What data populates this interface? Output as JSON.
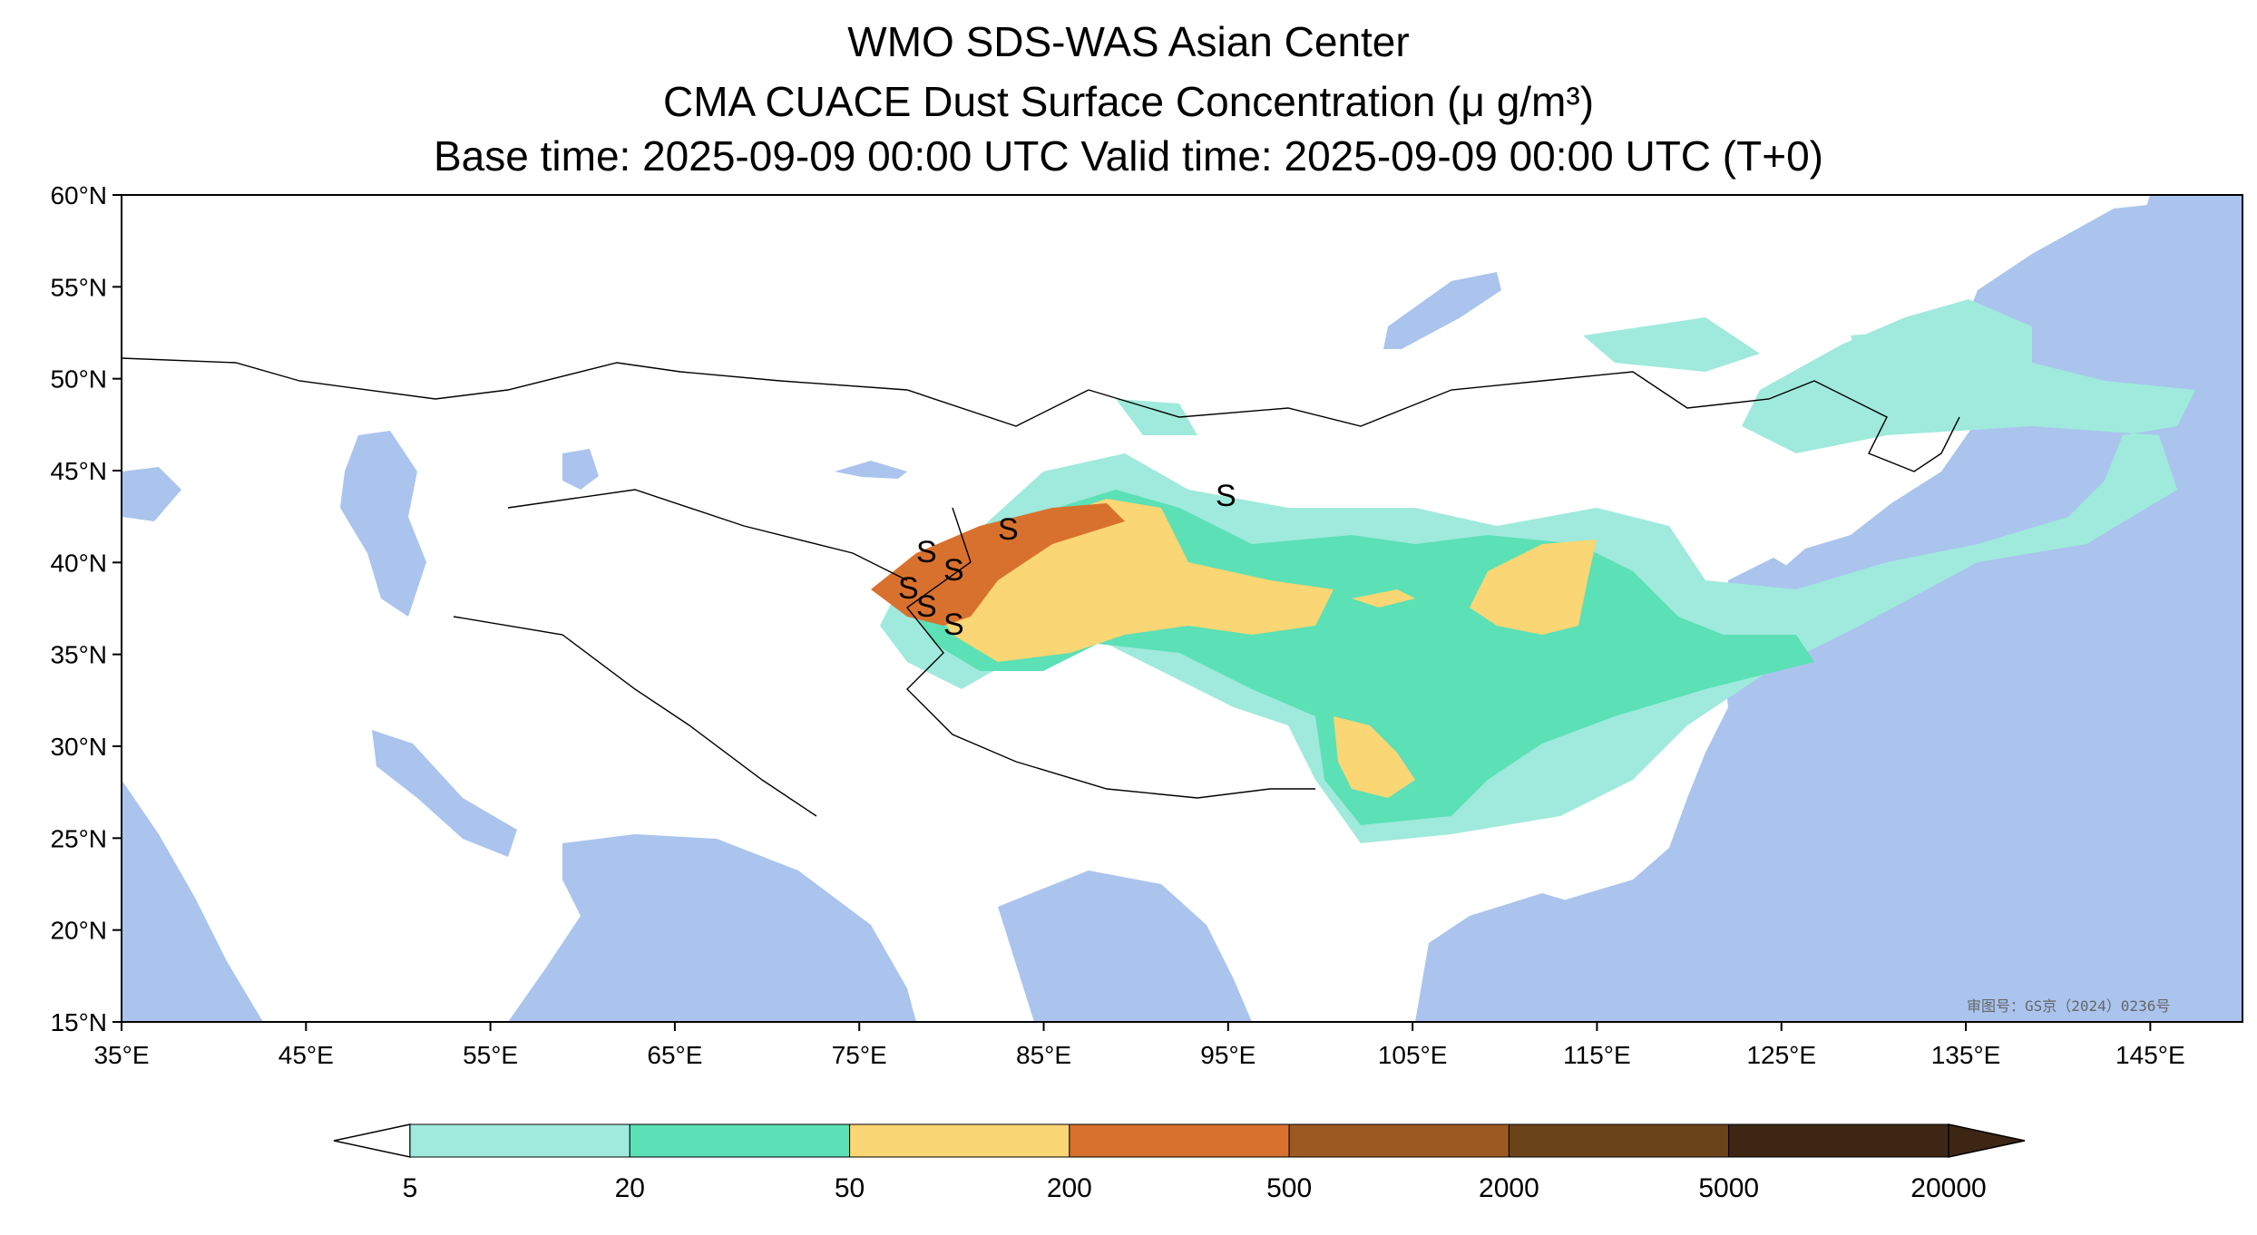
{
  "title": {
    "line1": "WMO SDS-WAS Asian Center",
    "line2": "CMA CUACE Dust Surface Concentration (μ g/m³)",
    "line3": "Base time: 2025-09-09 00:00 UTC Valid time: 2025-09-09 00:00 UTC (T+0)"
  },
  "map": {
    "lon_range": [
      35,
      150
    ],
    "lat_range": [
      15,
      60
    ],
    "lon_ticks": [
      "35°E",
      "45°E",
      "55°E",
      "65°E",
      "75°E",
      "85°E",
      "95°E",
      "105°E",
      "115°E",
      "125°E",
      "135°E",
      "145°E"
    ],
    "lat_ticks": [
      "60°N",
      "55°N",
      "50°N",
      "45°N",
      "40°N",
      "35°N",
      "30°N",
      "25°N",
      "20°N",
      "15°N"
    ],
    "approval_stamp": "审图号：GS京（2024）0236号",
    "ocean_color": "#aac4ee",
    "land_color": "#ffffff",
    "dust_marker": "S"
  },
  "colorbar": {
    "levels": [
      "5",
      "20",
      "50",
      "200",
      "500",
      "2000",
      "5000",
      "20000"
    ],
    "colors": [
      "#9feadc",
      "#5ce0b6",
      "#fad674",
      "#d9712e",
      "#9c5a22",
      "#6b431a",
      "#3d2614"
    ],
    "extend": "both"
  }
}
